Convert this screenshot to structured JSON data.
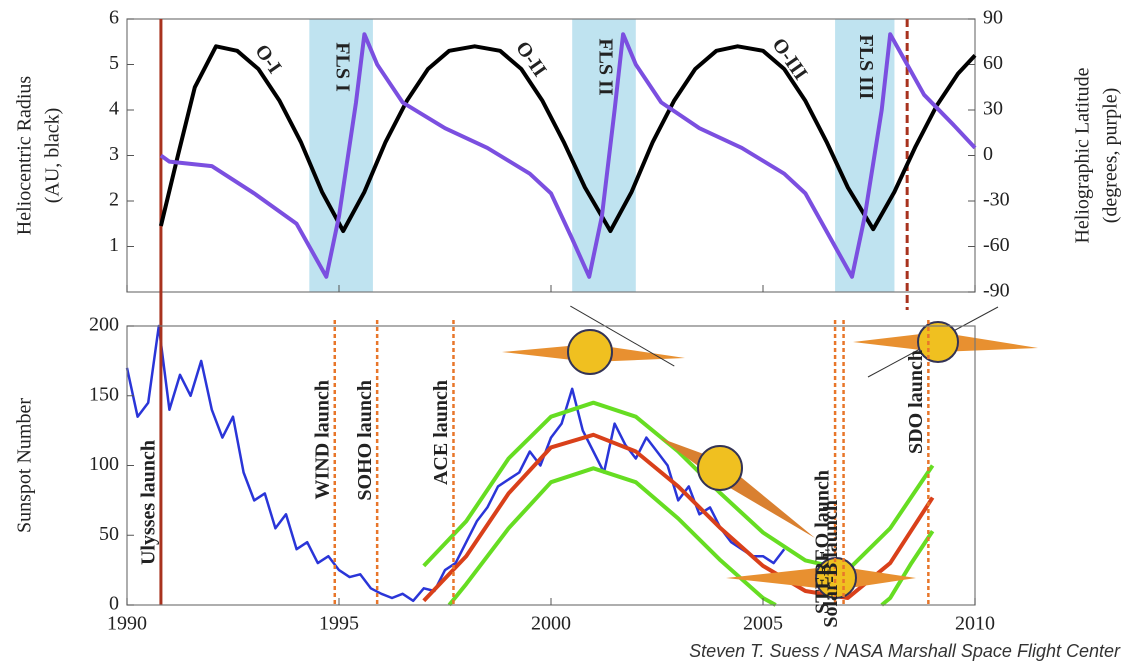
{
  "chart_data": [
    {
      "type": "line",
      "y_label": [
        "Heliocentric Radius",
        "(AU, black)"
      ],
      "y2_label": [
        "Heliographic Latitude",
        "(degrees, purple)"
      ],
      "xlim": [
        1990,
        2010
      ],
      "xticks": [
        1990,
        1995,
        2000,
        2005,
        2010
      ],
      "ylim": [
        0,
        6
      ],
      "yticks": [
        1,
        2,
        3,
        4,
        5,
        6
      ],
      "y2lim": [
        -90,
        90
      ],
      "y2ticks": [
        -90,
        -60,
        -30,
        0,
        30,
        60,
        90
      ],
      "shaded_spans": [
        {
          "label": "FLS I",
          "start": 1994.3,
          "end": 1995.8,
          "color": "#bfe3f0"
        },
        {
          "label": "FLS II",
          "start": 2000.5,
          "end": 2002.0,
          "color": "#bfe3f0"
        },
        {
          "label": "FLS III",
          "start": 2006.7,
          "end": 2008.1,
          "color": "#bfe3f0"
        }
      ],
      "annotations": [
        {
          "text": "O-I",
          "x": 1993.3,
          "y": 5.1
        },
        {
          "text": "O-II",
          "x": 1999.5,
          "y": 5.1
        },
        {
          "text": "O-III",
          "x": 2005.6,
          "y": 5.1
        }
      ],
      "vlines": [
        {
          "x": 1990.8,
          "style": "solid",
          "color": "#a8321e"
        },
        {
          "x": 2008.4,
          "style": "dashed",
          "color": "#a8321e"
        }
      ],
      "series": [
        {
          "color": "#000000",
          "x": [
            1990.8,
            1991.2,
            1991.6,
            1992.1,
            1992.6,
            1993.1,
            1993.6,
            1994.1,
            1994.6,
            1995.1,
            1995.6,
            1996.1,
            1996.6,
            1997.1,
            1997.6,
            1998.2,
            1998.8,
            1999.3,
            1999.8,
            2000.3,
            2000.8,
            2001.4,
            2001.9,
            2002.4,
            2002.9,
            2003.4,
            2003.9,
            2004.4,
            2005.0,
            2005.5,
            2006.0,
            2006.5,
            2007.0,
            2007.6,
            2008.1,
            2008.6,
            2009.1,
            2009.6,
            2010.0
          ],
          "values": [
            1.45,
            3.0,
            4.5,
            5.4,
            5.3,
            4.9,
            4.2,
            3.3,
            2.2,
            1.34,
            2.2,
            3.3,
            4.2,
            4.9,
            5.3,
            5.4,
            5.3,
            4.9,
            4.2,
            3.3,
            2.3,
            1.34,
            2.2,
            3.3,
            4.2,
            4.9,
            5.3,
            5.4,
            5.3,
            4.9,
            4.2,
            3.3,
            2.3,
            1.38,
            2.2,
            3.2,
            4.1,
            4.8,
            5.2
          ]
        },
        {
          "color": "#7b4fe0",
          "axis": "y2",
          "x": [
            1990.8,
            1991.0,
            1992.0,
            1993.0,
            1994.0,
            1994.4,
            1994.7,
            1995.0,
            1995.4,
            1995.6,
            1995.9,
            1996.5,
            1997.5,
            1998.5,
            1999.5,
            2000.0,
            2000.5,
            2000.9,
            2001.2,
            2001.5,
            2001.7,
            2002.0,
            2002.6,
            2003.5,
            2004.5,
            2005.5,
            2006.0,
            2006.6,
            2007.1,
            2007.4,
            2007.8,
            2008.0,
            2008.3,
            2008.8,
            2009.5,
            2010.0
          ],
          "values": [
            0,
            -4,
            -7,
            -25,
            -45,
            -65,
            -80,
            -40,
            35,
            80,
            60,
            35,
            18,
            5,
            -12,
            -25,
            -55,
            -80,
            -40,
            30,
            80,
            60,
            35,
            18,
            5,
            -12,
            -25,
            -55,
            -80,
            -40,
            30,
            80,
            65,
            40,
            20,
            5
          ]
        }
      ]
    },
    {
      "type": "line",
      "y_label": "Sunspot Number",
      "xlim": [
        1990,
        2010
      ],
      "xticks": [
        1990,
        1995,
        2000,
        2005,
        2010
      ],
      "ylim": [
        0,
        200
      ],
      "yticks": [
        0,
        50,
        100,
        150,
        200
      ],
      "launches": [
        {
          "label": "Ulysses launch",
          "x": 1990.8,
          "style": "solid",
          "color": "#a8321e"
        },
        {
          "label": "WIND launch",
          "x": 1994.9,
          "style": "dashed",
          "color": "#e8762a"
        },
        {
          "label": "SOHO launch",
          "x": 1995.9,
          "style": "dashed",
          "color": "#e8762a"
        },
        {
          "label": "ACE launch",
          "x": 1997.7,
          "style": "dashed",
          "color": "#e8762a"
        },
        {
          "label": "STEREO launch",
          "x": 2006.7,
          "style": "dashed",
          "color": "#e8762a"
        },
        {
          "label": "Solar-B launch",
          "x": 2006.9,
          "style": "dashed",
          "color": "#e8762a"
        },
        {
          "label": "SDO launch",
          "x": 2008.9,
          "style": "dashed",
          "color": "#e8762a"
        }
      ],
      "series": [
        {
          "color": "#2a35d8",
          "x": [
            1990.0,
            1990.25,
            1990.5,
            1990.75,
            1991.0,
            1991.25,
            1991.5,
            1991.75,
            1992.0,
            1992.25,
            1992.5,
            1992.75,
            1993.0,
            1993.25,
            1993.5,
            1993.75,
            1994.0,
            1994.25,
            1994.5,
            1994.75,
            1995.0,
            1995.25,
            1995.5,
            1995.75,
            1996.0,
            1996.25,
            1996.5,
            1996.75,
            1997.0,
            1997.25,
            1997.5,
            1997.75,
            1998.0,
            1998.25,
            1998.5,
            1998.75,
            1999.0,
            1999.25,
            1999.5,
            1999.75,
            2000.0,
            2000.25,
            2000.5,
            2000.75,
            2001.0,
            2001.25,
            2001.5,
            2001.75,
            2002.0,
            2002.25,
            2002.5,
            2002.75,
            2003.0,
            2003.25,
            2003.5,
            2003.75,
            2004.0,
            2004.25,
            2004.5,
            2004.75,
            2005.0,
            2005.25,
            2005.5
          ],
          "values": [
            170,
            135,
            145,
            200,
            140,
            165,
            150,
            175,
            140,
            120,
            135,
            95,
            75,
            80,
            55,
            65,
            40,
            45,
            30,
            35,
            25,
            20,
            22,
            12,
            8,
            5,
            8,
            3,
            12,
            10,
            25,
            30,
            45,
            60,
            70,
            85,
            90,
            95,
            110,
            100,
            120,
            130,
            155,
            125,
            110,
            95,
            130,
            115,
            105,
            120,
            110,
            100,
            75,
            85,
            65,
            70,
            55,
            45,
            40,
            35,
            35,
            30,
            40
          ]
        },
        {
          "color": "#66dd22",
          "x": [
            1997.0,
            1998.0,
            1999.0,
            2000.0,
            2001.0,
            2002.0,
            2003.0,
            2004.0,
            2005.0,
            2006.0,
            2007.0,
            2008.0,
            2009.0
          ],
          "values": [
            28,
            60,
            105,
            135,
            145,
            135,
            110,
            80,
            52,
            32,
            25,
            55,
            100
          ]
        },
        {
          "color": "#66dd22",
          "x": [
            1997.6,
            1998.0,
            1999.0,
            2000.0,
            2001.0,
            2002.0,
            2003.0,
            2004.0,
            2005.0,
            2005.3,
            2006.5,
            2007.8,
            2008.0,
            2008.5,
            2009.0
          ],
          "values": [
            0,
            15,
            55,
            88,
            98,
            88,
            62,
            32,
            5,
            0,
            null,
            0,
            5,
            30,
            53
          ]
        },
        {
          "color": "#d9401a",
          "x": [
            1997.0,
            1998.0,
            1999.0,
            2000.0,
            2001.0,
            2002.0,
            2003.0,
            2004.0,
            2005.0,
            2006.0,
            2007.0,
            2008.0,
            2009.0
          ],
          "values": [
            3,
            35,
            80,
            113,
            122,
            110,
            85,
            55,
            28,
            10,
            5,
            30,
            77
          ]
        }
      ]
    }
  ],
  "credit": "Steven T. Suess / NASA Marshall Space Flight Center"
}
